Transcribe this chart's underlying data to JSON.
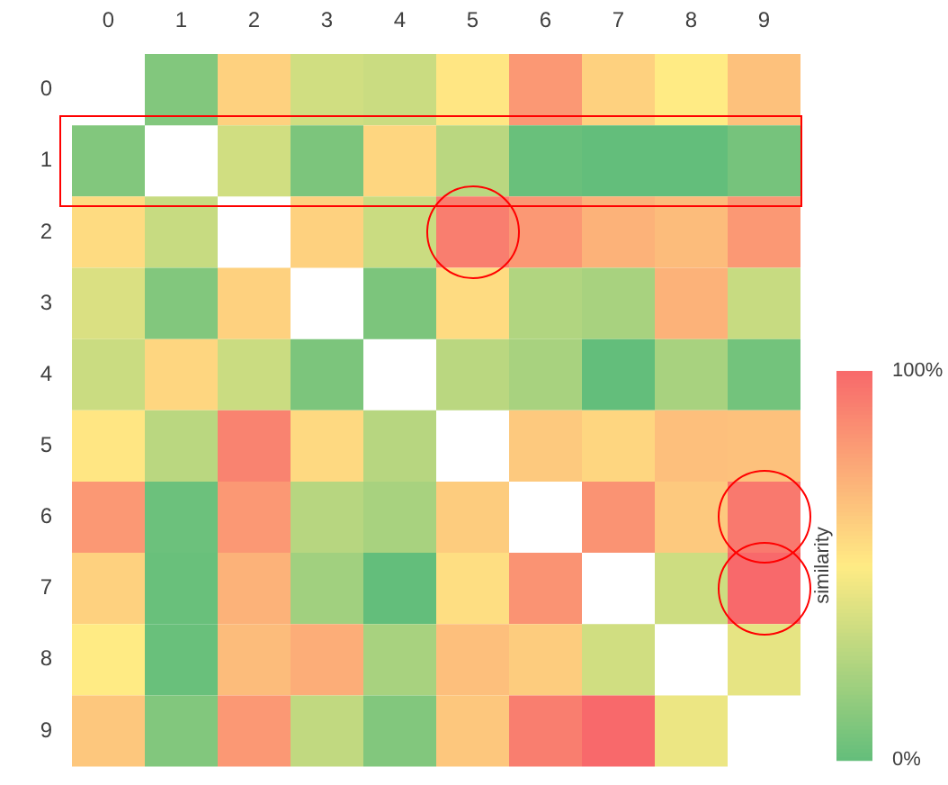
{
  "chart_data": {
    "type": "heatmap",
    "clabel": "similarity",
    "categories": [
      "0",
      "1",
      "2",
      "3",
      "4",
      "5",
      "6",
      "7",
      "8",
      "9"
    ],
    "y_categories": [
      "0",
      "1",
      "2",
      "3",
      "4",
      "5",
      "6",
      "7",
      "8",
      "9"
    ],
    "cells": [
      [
        null,
        10,
        60,
        35,
        33,
        52,
        82,
        60,
        50,
        66
      ],
      [
        10,
        null,
        35,
        8,
        58,
        28,
        2,
        0,
        0,
        6
      ],
      [
        56,
        32,
        null,
        60,
        33,
        92,
        82,
        72,
        68,
        82
      ],
      [
        38,
        10,
        60,
        null,
        8,
        56,
        25,
        22,
        72,
        32
      ],
      [
        33,
        58,
        33,
        8,
        null,
        28,
        22,
        0,
        22,
        5
      ],
      [
        52,
        28,
        90,
        57,
        27,
        null,
        63,
        58,
        67,
        66
      ],
      [
        82,
        3,
        82,
        27,
        22,
        62,
        null,
        84,
        63,
        94
      ],
      [
        60,
        2,
        72,
        20,
        0,
        55,
        84,
        null,
        34,
        100
      ],
      [
        50,
        2,
        68,
        74,
        22,
        67,
        62,
        35,
        null,
        42
      ],
      [
        64,
        10,
        82,
        30,
        10,
        64,
        92,
        100,
        44,
        null
      ]
    ],
    "clim": [
      0,
      100
    ],
    "cticks": [
      {
        "value": 0,
        "label": "0%"
      },
      {
        "value": 100,
        "label": "100%"
      }
    ]
  }
}
